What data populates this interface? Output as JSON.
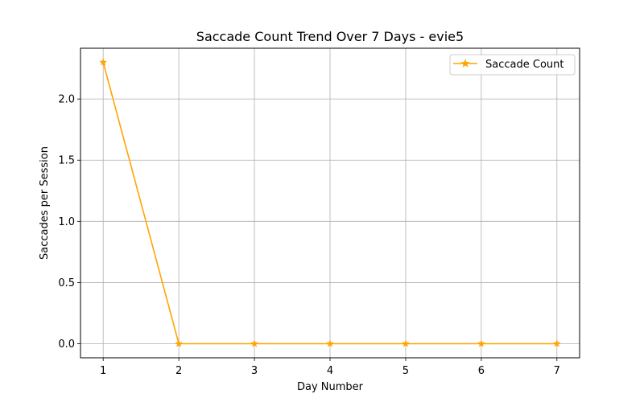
{
  "chart_data": {
    "type": "line",
    "title": "Saccade Count Trend Over 7 Days - evie5",
    "xlabel": "Day Number",
    "ylabel": "Saccades per Session",
    "x": [
      1,
      2,
      3,
      4,
      5,
      6,
      7
    ],
    "series": [
      {
        "name": "Saccade Count",
        "values": [
          2.3,
          0,
          0,
          0,
          0,
          0,
          0
        ],
        "color": "#ffa500",
        "marker": "star"
      }
    ],
    "xlim": [
      0.7,
      7.3
    ],
    "ylim": [
      -0.115,
      2.415
    ],
    "xticks": [
      "1",
      "2",
      "3",
      "4",
      "5",
      "6",
      "7"
    ],
    "yticks": [
      "0.0",
      "0.5",
      "1.0",
      "1.5",
      "2.0"
    ],
    "grid": true,
    "legend_position": "top-right"
  }
}
